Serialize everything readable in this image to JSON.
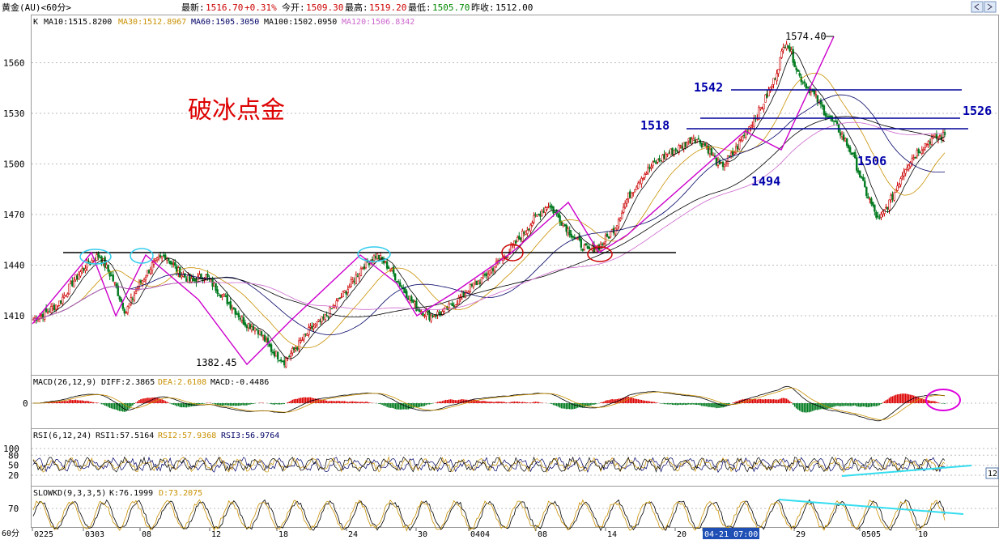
{
  "header": {
    "symbol": "黄金(AU)<60分>",
    "last_label": "最新:",
    "last_value": "1516.70",
    "change": "+0.31%",
    "open_label": "今开:",
    "open_value": "1509.30",
    "high_label": "最高:",
    "high_value": "1519.20",
    "low_label": "最低:",
    "low_value": "1505.70",
    "prev_label": "昨收:",
    "prev_value": "1512.00"
  },
  "ma_legend": [
    {
      "label": "MA10:1515.8200",
      "color": "#000000"
    },
    {
      "label": "MA30:1512.8967",
      "color": "#c99000"
    },
    {
      "label": "MA60:1505.3050",
      "color": "#000066"
    },
    {
      "label": "MA100:1502.0950",
      "color": "#000000"
    },
    {
      "label": "MA120:1506.8342",
      "color": "#cc66cc"
    }
  ],
  "main_pane_label": "K",
  "watermark": "破冰点金",
  "annotations": [
    {
      "text": "1574.40",
      "kind": "peak"
    },
    {
      "text": "1382.45",
      "kind": "trough"
    },
    {
      "text": "1542",
      "kind": "level"
    },
    {
      "text": "1526",
      "kind": "level"
    },
    {
      "text": "1518",
      "kind": "level"
    },
    {
      "text": "1494",
      "kind": "level"
    },
    {
      "text": "1506",
      "kind": "level"
    }
  ],
  "macd_legend": {
    "name": "MACD(26,12,9)",
    "diff": "DIFF:2.3865",
    "dea": "DEA:2.6108",
    "macd": "MACD:-0.4486"
  },
  "rsi_legend": {
    "name": "RSI(6,12,24)",
    "rsi1": "RSI1:57.5164",
    "rsi2": "RSI2:57.9368",
    "rsi3": "RSI3:56.9764"
  },
  "kd_legend": {
    "name": "SLOWKD(9,3,3,5)",
    "k": "K:76.1999",
    "d": "D:73.2075"
  },
  "x_axis": {
    "period_label": "60分",
    "ticks": [
      "0225",
      "0303",
      "08",
      "12",
      "18",
      "24",
      "30",
      "0404",
      "08",
      "14",
      "20",
      "04-21 07:00",
      "29",
      "0505",
      "10"
    ]
  },
  "right_edge_label": "12",
  "chart_data": {
    "type": "candlestick",
    "y_ticks": [
      1410,
      1440,
      1470,
      1500,
      1530,
      1560
    ],
    "ylim": [
      1380,
      1580
    ],
    "macd_y_ticks": [
      0
    ],
    "rsi_y_ticks": [
      20,
      50,
      80,
      100
    ],
    "kd_y_ticks": [
      70
    ],
    "series": [
      {
        "name": "K",
        "approx_close_path": [
          1408,
          1412,
          1418,
          1430,
          1440,
          1446,
          1432,
          1412,
          1428,
          1440,
          1446,
          1436,
          1430,
          1434,
          1425,
          1416,
          1406,
          1402,
          1390,
          1383,
          1392,
          1402,
          1408,
          1418,
          1428,
          1440,
          1446,
          1438,
          1426,
          1415,
          1410,
          1412,
          1418,
          1426,
          1432,
          1440,
          1448,
          1458,
          1468,
          1476,
          1466,
          1456,
          1448,
          1452,
          1462,
          1480,
          1492,
          1500,
          1506,
          1510,
          1516,
          1510,
          1498,
          1506,
          1520,
          1532,
          1548,
          1574,
          1552,
          1542,
          1530,
          1520,
          1506,
          1484,
          1466,
          1480,
          1498,
          1508,
          1515,
          1517
        ]
      }
    ]
  }
}
